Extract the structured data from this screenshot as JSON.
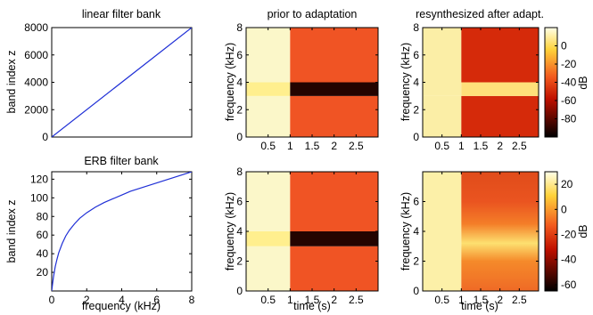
{
  "chart_data": [
    {
      "type": "line",
      "title": "linear filter bank",
      "xlabel": "",
      "ylabel": "band index z",
      "xlim": [
        0,
        8
      ],
      "ylim": [
        0,
        8000
      ],
      "xticks": [],
      "yticks": [
        0,
        2000,
        4000,
        6000,
        8000
      ],
      "ytick_labels": [
        "0",
        "2000",
        "4000",
        "6000",
        "8000"
      ],
      "line_color": "#1f2fd6",
      "series": [
        {
          "x": [
            0,
            8
          ],
          "y": [
            0,
            8000
          ]
        }
      ]
    },
    {
      "type": "line",
      "title": "ERB filter bank",
      "xlabel": "frequency (kHz)",
      "ylabel": "band index z",
      "xlim": [
        0,
        8
      ],
      "ylim": [
        0,
        128
      ],
      "xticks": [
        0,
        2,
        4,
        6,
        8
      ],
      "xtick_labels": [
        "0",
        "2",
        "4",
        "6",
        "8"
      ],
      "yticks": [
        20,
        40,
        60,
        80,
        100,
        120
      ],
      "ytick_labels": [
        "20",
        "40",
        "60",
        "80",
        "100",
        "120"
      ],
      "line_color": "#1f2fd6",
      "series": [
        {
          "x": [
            0,
            0.05,
            0.1,
            0.2,
            0.3,
            0.4,
            0.6,
            0.8,
            1.0,
            1.3,
            1.6,
            2.0,
            2.5,
            3.0,
            3.5,
            4.0,
            4.5,
            5.0,
            5.5,
            6.0,
            6.5,
            7.0,
            7.5,
            8.0
          ],
          "y": [
            0,
            8,
            15,
            26,
            34,
            41,
            51,
            59,
            65,
            72,
            78,
            84,
            90,
            95,
            99,
            103,
            107,
            110,
            113,
            116,
            119,
            122,
            125,
            128
          ]
        }
      ]
    },
    {
      "type": "heatmap",
      "title": "prior to adaptation",
      "xlabel": "",
      "ylabel": "frequency (kHz)",
      "xlim": [
        0,
        3
      ],
      "ylim": [
        0,
        8
      ],
      "xticks": [
        0.5,
        1,
        1.5,
        2,
        2.5
      ],
      "xtick_labels": [
        "0.5",
        "1",
        "1.5",
        "2",
        "2.5"
      ],
      "yticks": [
        0,
        2,
        4,
        6,
        8
      ],
      "ytick_labels": [
        "0",
        "2",
        "4",
        "6",
        "8"
      ],
      "time_boundaries": [
        0,
        1,
        3
      ],
      "freq_boundaries": [
        0,
        3,
        4,
        8
      ],
      "colors": [
        [
          "#fbf7c9",
          "#ffef8e",
          "#fbf7c9"
        ],
        [
          "#f05424",
          "#240400",
          "#f05424"
        ]
      ]
    },
    {
      "type": "heatmap",
      "title": "resynthesized after adapt.",
      "xlabel": "",
      "ylabel": "frequency (kHz)",
      "xlim": [
        0,
        3
      ],
      "ylim": [
        0,
        8
      ],
      "xticks": [
        0.5,
        1,
        1.5,
        2,
        2.5
      ],
      "xtick_labels": [
        "0.5",
        "1",
        "1.5",
        "2",
        "2.5"
      ],
      "yticks": [
        0,
        2,
        4,
        6,
        8
      ],
      "ytick_labels": [
        "0",
        "2",
        "4",
        "6",
        "8"
      ],
      "time_boundaries": [
        0,
        1,
        3
      ],
      "freq_boundaries": [
        0,
        3,
        4,
        8
      ],
      "colors": [
        [
          "#fbeea6",
          "#fbeea6",
          "#fbeea6"
        ],
        [
          "#d52a0a",
          "#ffe07a",
          "#d52a0a"
        ]
      ],
      "colorbar": {
        "label": "dB",
        "range": [
          -100,
          20
        ],
        "ticks": [
          -80,
          -60,
          -40,
          -20,
          0
        ],
        "tick_labels": [
          "-80",
          "-60",
          "-40",
          "-20",
          "0"
        ],
        "colormap": "hot"
      }
    },
    {
      "type": "heatmap",
      "title": "",
      "xlabel": "time (s)",
      "ylabel": "frequency (kHz)",
      "xlim": [
        0,
        3
      ],
      "ylim": [
        0,
        8
      ],
      "xticks": [
        0.5,
        1,
        1.5,
        2,
        2.5
      ],
      "xtick_labels": [
        "0.5",
        "1",
        "1.5",
        "2",
        "2.5"
      ],
      "yticks": [
        0,
        2,
        4,
        6,
        8
      ],
      "ytick_labels": [
        "0",
        "2",
        "4",
        "6",
        "8"
      ],
      "time_boundaries": [
        0,
        1,
        3
      ],
      "freq_boundaries": [
        0,
        3,
        4,
        8
      ],
      "colors": [
        [
          "#fbf7c9",
          "#ffef8e",
          "#fbf7c9"
        ],
        [
          "#f05424",
          "#240400",
          "#f05424"
        ]
      ]
    },
    {
      "type": "heatmap",
      "title": "",
      "xlabel": "time (s)",
      "ylabel": "frequency (kHz)",
      "xlim": [
        0,
        3
      ],
      "ylim": [
        0,
        8
      ],
      "xticks": [
        0.5,
        1,
        1.5,
        2,
        2.5
      ],
      "xtick_labels": [
        "0.5",
        "1",
        "1.5",
        "2",
        "2.5"
      ],
      "yticks": [
        0,
        2,
        4,
        6
      ],
      "ytick_labels": [
        "0",
        "2",
        "4",
        "6"
      ],
      "time_boundaries": [
        0,
        1,
        3
      ],
      "colors_first": "#fcf0a8",
      "gradient_after": [
        {
          "f": 0,
          "color": "#ef6a26"
        },
        {
          "f": 2.0,
          "color": "#f58a2a"
        },
        {
          "f": 3.2,
          "color": "#fde070"
        },
        {
          "f": 4.5,
          "color": "#f47e28"
        },
        {
          "f": 6.0,
          "color": "#ea5420"
        },
        {
          "f": 8,
          "color": "#e04c1a"
        }
      ],
      "colorbar": {
        "label": "dB",
        "range": [
          -65,
          30
        ],
        "ticks": [
          -60,
          -40,
          -20,
          0,
          20
        ],
        "tick_labels": [
          "-60",
          "-40",
          "-20",
          "0",
          "20"
        ],
        "colormap": "hot"
      }
    }
  ]
}
